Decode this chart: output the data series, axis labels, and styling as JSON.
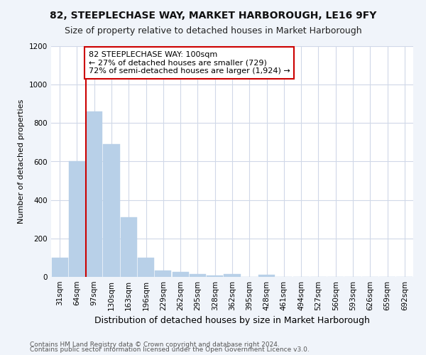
{
  "title": "82, STEEPLECHASE WAY, MARKET HARBOROUGH, LE16 9FY",
  "subtitle": "Size of property relative to detached houses in Market Harborough",
  "xlabel": "Distribution of detached houses by size in Market Harborough",
  "ylabel": "Number of detached properties",
  "footer1": "Contains HM Land Registry data © Crown copyright and database right 2024.",
  "footer2": "Contains public sector information licensed under the Open Government Licence v3.0.",
  "bar_labels": [
    "31sqm",
    "64sqm",
    "97sqm",
    "130sqm",
    "163sqm",
    "196sqm",
    "229sqm",
    "262sqm",
    "295sqm",
    "328sqm",
    "362sqm",
    "395sqm",
    "428sqm",
    "461sqm",
    "494sqm",
    "527sqm",
    "560sqm",
    "593sqm",
    "626sqm",
    "659sqm",
    "692sqm"
  ],
  "bar_values": [
    100,
    600,
    860,
    690,
    310,
    100,
    35,
    25,
    15,
    8,
    15,
    0,
    12,
    0,
    0,
    0,
    0,
    0,
    0,
    0,
    0
  ],
  "bar_color": "#b8d0e8",
  "bar_edge_color": "#b8d0e8",
  "property_line_index": 2,
  "property_line_color": "#cc0000",
  "annotation_text": "82 STEEPLECHASE WAY: 100sqm\n← 27% of detached houses are smaller (729)\n72% of semi-detached houses are larger (1,924) →",
  "annotation_box_facecolor": "#ffffff",
  "annotation_box_edgecolor": "#cc0000",
  "ylim": [
    0,
    1200
  ],
  "yticks": [
    0,
    200,
    400,
    600,
    800,
    1000,
    1200
  ],
  "title_fontsize": 10,
  "subtitle_fontsize": 9,
  "xlabel_fontsize": 9,
  "ylabel_fontsize": 8,
  "tick_fontsize": 7.5,
  "annotation_fontsize": 8,
  "footer_fontsize": 6.5,
  "bg_color": "#f0f4fa",
  "plot_bg_color": "#ffffff",
  "grid_color": "#d0d8e8"
}
